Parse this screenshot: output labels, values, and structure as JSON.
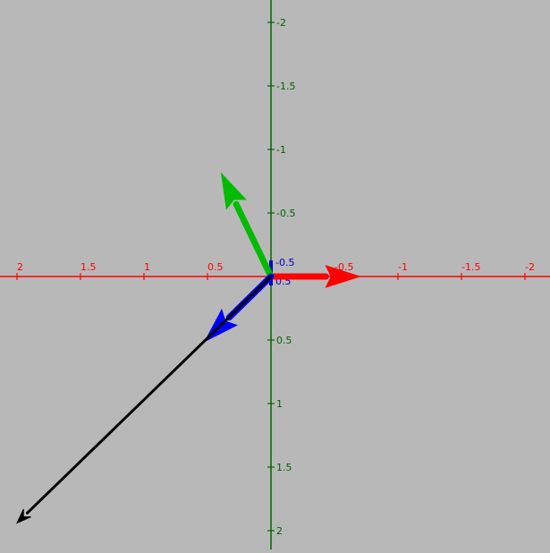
{
  "scene": {
    "background": "#b8b8b8",
    "x_axis": {
      "color": "#ff0000",
      "ticks": [
        {
          "value": 2,
          "label": "2"
        },
        {
          "value": 1.5,
          "label": "1.5"
        },
        {
          "value": 1,
          "label": "1"
        },
        {
          "value": 0.5,
          "label": "0.5"
        },
        {
          "value": -0.5,
          "label": "-0.5"
        },
        {
          "value": -1,
          "label": "-1"
        },
        {
          "value": -1.5,
          "label": "-1.5"
        },
        {
          "value": -2,
          "label": "-2"
        }
      ]
    },
    "y_axis": {
      "color": "#006400",
      "ticks": [
        {
          "value": -2,
          "label": "-2"
        },
        {
          "value": -1.5,
          "label": "-1.5"
        },
        {
          "value": -1,
          "label": "-1"
        },
        {
          "value": -0.5,
          "label": "-0.5"
        },
        {
          "value": 0.5,
          "label": "0.5"
        },
        {
          "value": 1,
          "label": "1"
        },
        {
          "value": 1.5,
          "label": "1.5"
        },
        {
          "value": 2,
          "label": "2"
        }
      ]
    },
    "z_axis": {
      "color": "#0000cc",
      "labels": [
        "-0.5",
        "0.5"
      ]
    },
    "vectors": [
      {
        "name": "red-vector",
        "color": "#ff0000",
        "x": -0.7,
        "y": 0
      },
      {
        "name": "green-vector",
        "color": "#00bb00",
        "x": 0.39,
        "y": -0.81
      },
      {
        "name": "blue-vector",
        "color": "#0000ff",
        "x": 0.52,
        "y": 0.51
      },
      {
        "name": "black-vector",
        "color": "#000000",
        "x": 2.0,
        "y": 1.94
      }
    ]
  }
}
